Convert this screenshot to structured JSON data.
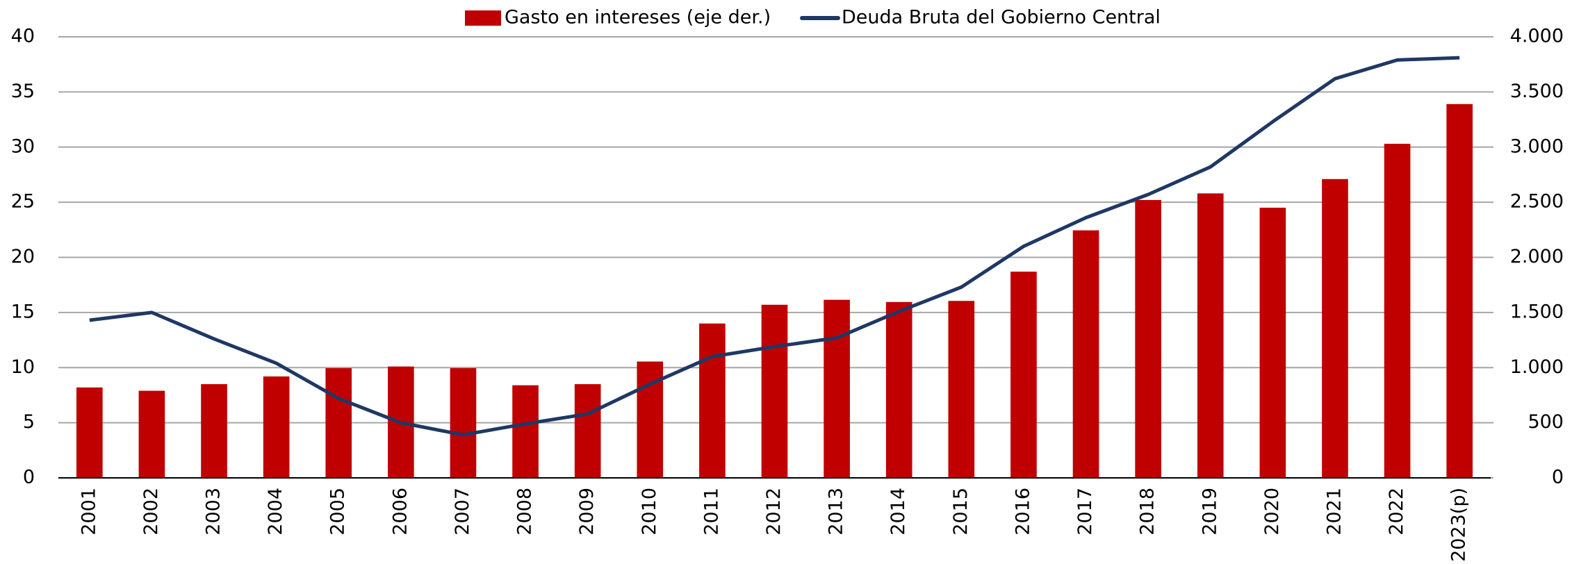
{
  "chart_data": {
    "type": "combo",
    "categories": [
      "2001",
      "2002",
      "2003",
      "2004",
      "2005",
      "2006",
      "2007",
      "2008",
      "2009",
      "2010",
      "2011",
      "2012",
      "2013",
      "2014",
      "2015",
      "2016",
      "2017",
      "2018",
      "2019",
      "2020",
      "2021",
      "2022",
      "2023(p)"
    ],
    "series": [
      {
        "name": "Gasto en intereses (eje der.)",
        "type": "bar",
        "axis": "y2",
        "color": "#c00000",
        "values": [
          820,
          790,
          850,
          920,
          995,
          1010,
          995,
          840,
          850,
          1055,
          1400,
          1570,
          1615,
          1595,
          1605,
          1870,
          2245,
          2520,
          2580,
          2450,
          2710,
          3030,
          3390
        ]
      },
      {
        "name": "Deuda Bruta del Gobierno Central",
        "type": "line",
        "color": "#1f3864",
        "values": [
          14.3,
          15.0,
          12.6,
          10.4,
          7.2,
          5.0,
          3.9,
          4.9,
          5.8,
          8.5,
          11.0,
          11.9,
          12.7,
          15.1,
          17.3,
          21.0,
          23.6,
          25.7,
          28.2,
          32.3,
          36.2,
          37.9,
          38.1
        ]
      }
    ],
    "ylim": [
      0,
      40
    ],
    "yticks": [
      0,
      5,
      10,
      15,
      20,
      25,
      30,
      35,
      40
    ],
    "y2lim": [
      0,
      4000
    ],
    "y2ticks": [
      0,
      500,
      {
        "value": 1000,
        "label": "1.000"
      },
      {
        "value": 1500,
        "label": "1.500"
      },
      {
        "value": 2000,
        "label": "2.000"
      },
      {
        "value": 2500,
        "label": "2.500"
      },
      {
        "value": 3000,
        "label": "3.000"
      },
      {
        "value": 3500,
        "label": "3.500"
      },
      {
        "value": 4000,
        "label": "4.000"
      }
    ],
    "grid": true,
    "legend": "top"
  }
}
